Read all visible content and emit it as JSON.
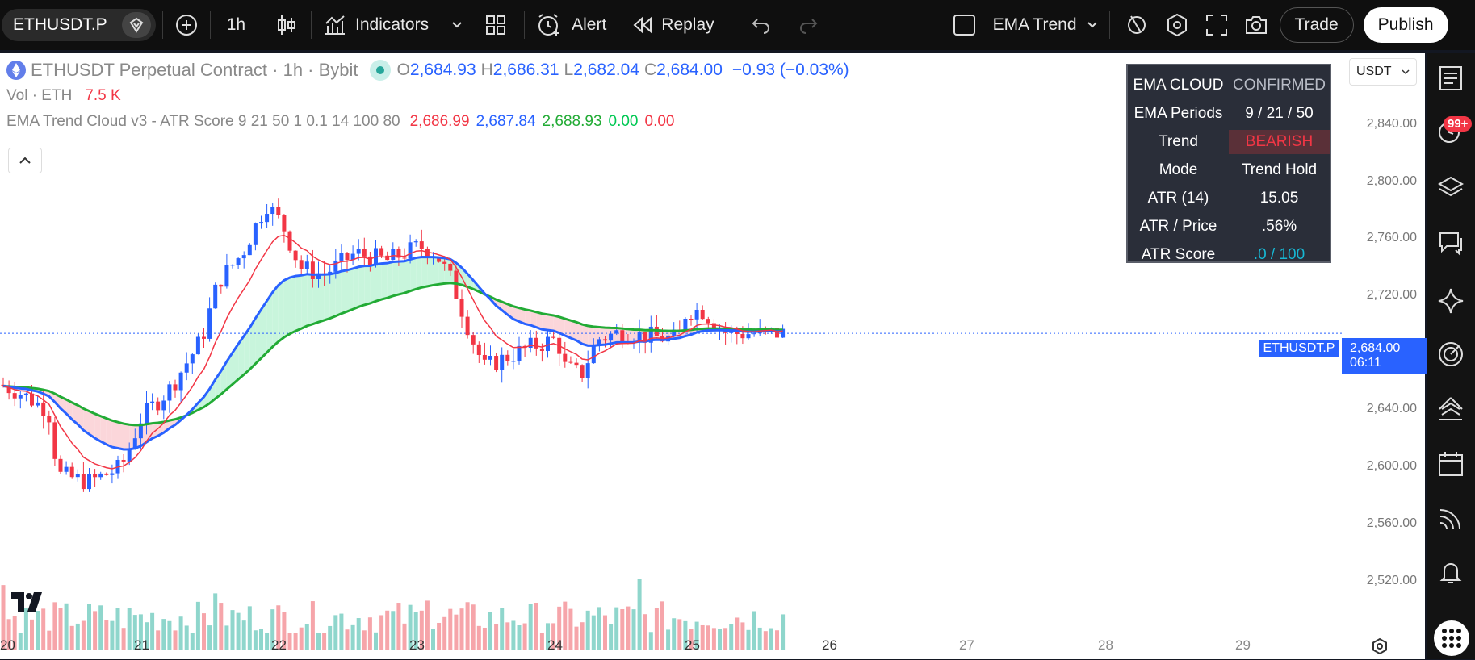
{
  "toolbar": {
    "symbol": "ETHUSDT.P",
    "interval": "1h",
    "indicators_label": "Indicators",
    "alert_label": "Alert",
    "replay_label": "Replay",
    "indicator_name": "EMA Trend",
    "trade_label": "Trade",
    "publish_label": "Publish"
  },
  "legend": {
    "title": "ETHUSDT Perpetual Contract · 1h · Bybit",
    "ohlc": {
      "o_label": "O",
      "o": "2,684.93",
      "h_label": "H",
      "h": "2,686.31",
      "l_label": "L",
      "l": "2,682.04",
      "c_label": "C",
      "c": "2,684.00",
      "change": "−0.93 (−0.03%)"
    },
    "volume_label": "Vol · ETH",
    "volume_value": "7.5 K",
    "indicator_label": "EMA Trend Cloud v3 - ATR Score 9 21 50 1 0.1 14 100 80",
    "indicator_values": [
      "2,686.99",
      "2,687.84",
      "2,688.93",
      "0.00",
      "0.00"
    ]
  },
  "ema_panel": {
    "rows": [
      {
        "key": "EMA CLOUD",
        "value": "CONFIRMED"
      },
      {
        "key": "EMA Periods",
        "value": "9 / 21 / 50"
      },
      {
        "key": "Trend",
        "value": "BEARISH"
      },
      {
        "key": "Mode",
        "value": "Trend Hold"
      },
      {
        "key": "ATR (14)",
        "value": "15.05"
      },
      {
        "key": "ATR / Price",
        "value": ".56%"
      },
      {
        "key": "ATR Score",
        "value": ".0 / 100"
      }
    ]
  },
  "price_axis": {
    "currency": "USDT",
    "labels": [
      "2,840.00",
      "2,800.00",
      "2,760.00",
      "2,720.00",
      "2,640.00",
      "2,600.00",
      "2,560.00",
      "2,520.00"
    ],
    "last_price": "2,684.00",
    "countdown": "06:11",
    "symbol_tag": "ETHUSDT.P"
  },
  "time_axis": {
    "labels": [
      "20",
      "21",
      "22",
      "23",
      "24",
      "25",
      "26",
      "27",
      "28",
      "29"
    ]
  },
  "right_toolbar": {
    "notification_badge": "99+"
  },
  "colors": {
    "up": "#26a69a",
    "down": "#ef5350",
    "candle_up": "#2962ff",
    "candle_down": "#f23645",
    "ema_fast": "#f23645",
    "ema_mid": "#2962ff",
    "ema_slow": "#22ab35",
    "cloud_bull": "#c8f5dc",
    "cloud_bear": "#fbd6da"
  },
  "chart_data": {
    "type": "candlestick",
    "price_range": [
      2490,
      2860
    ],
    "ema_cloud": true
  }
}
